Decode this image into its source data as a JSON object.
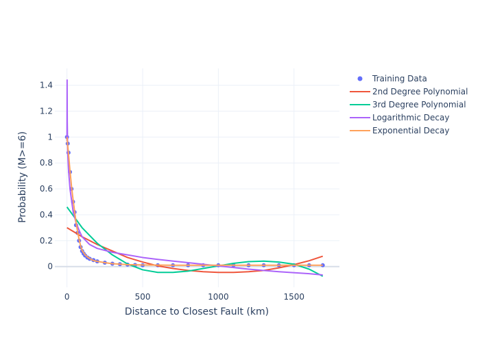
{
  "chart_data": {
    "type": "line",
    "xlabel": "Distance to Closest Fault (km)",
    "ylabel": "Probability (M>=6)",
    "xlim": [
      -80,
      1800
    ],
    "ylim": [
      -0.16,
      1.53
    ],
    "x_ticks": [
      0,
      500,
      1000,
      1500
    ],
    "y_ticks": [
      0,
      0.2,
      0.4,
      0.6,
      0.8,
      1,
      1.2,
      1.4
    ],
    "x_tick_labels": [
      "0",
      "500",
      "1000",
      "1500"
    ],
    "y_tick_labels": [
      "0",
      "0.2",
      "0.4",
      "0.6",
      "0.8",
      "1",
      "1.2",
      "1.4"
    ],
    "grid": true,
    "legend_position": "top-right",
    "series": [
      {
        "name": "Training Data",
        "mode": "markers",
        "color": "#636efa",
        "x": [
          0,
          5,
          10,
          20,
          30,
          40,
          50,
          60,
          70,
          80,
          90,
          100,
          110,
          120,
          135,
          150,
          175,
          200,
          250,
          300,
          350,
          400,
          450,
          500,
          600,
          700,
          800,
          900,
          1000,
          1100,
          1200,
          1300,
          1400,
          1500,
          1600,
          1690
        ],
        "y": [
          1.0,
          0.95,
          0.88,
          0.73,
          0.6,
          0.5,
          0.42,
          0.32,
          0.26,
          0.2,
          0.15,
          0.12,
          0.1,
          0.085,
          0.07,
          0.06,
          0.05,
          0.04,
          0.03,
          0.022,
          0.018,
          0.015,
          0.012,
          0.01,
          0.01,
          0.01,
          0.01,
          0.01,
          0.01,
          0.01,
          0.01,
          0.01,
          0.01,
          0.01,
          0.01,
          0.01
        ]
      },
      {
        "name": "2nd Degree Polynomial",
        "mode": "lines",
        "color": "#ef553b",
        "x": [
          0,
          100,
          200,
          300,
          400,
          500,
          600,
          700,
          800,
          900,
          1000,
          1100,
          1200,
          1300,
          1400,
          1500,
          1600,
          1690
        ],
        "y": [
          0.3,
          0.23,
          0.17,
          0.12,
          0.07,
          0.035,
          0.005,
          -0.015,
          -0.03,
          -0.04,
          -0.045,
          -0.045,
          -0.04,
          -0.03,
          -0.01,
          0.015,
          0.045,
          0.08
        ]
      },
      {
        "name": "3rd Degree Polynomial",
        "mode": "lines",
        "color": "#00cc96",
        "x": [
          0,
          100,
          200,
          300,
          400,
          500,
          600,
          700,
          800,
          900,
          1000,
          1100,
          1200,
          1300,
          1400,
          1500,
          1600,
          1690
        ],
        "y": [
          0.46,
          0.3,
          0.18,
          0.09,
          0.02,
          -0.025,
          -0.045,
          -0.045,
          -0.035,
          -0.015,
          0.005,
          0.025,
          0.038,
          0.042,
          0.035,
          0.018,
          -0.02,
          -0.075
        ]
      },
      {
        "name": "Logarithmic Decay",
        "mode": "lines",
        "color": "#ab63fa",
        "x": [
          0,
          1,
          2,
          5,
          10,
          20,
          40,
          60,
          80,
          100,
          150,
          200,
          300,
          400,
          500,
          600,
          800,
          1000,
          1200,
          1400,
          1600,
          1690
        ],
        "y": [
          0.97,
          1.44,
          1.12,
          0.88,
          0.75,
          0.6,
          0.43,
          0.34,
          0.28,
          0.23,
          0.17,
          0.14,
          0.11,
          0.09,
          0.07,
          0.055,
          0.03,
          0.005,
          -0.02,
          -0.04,
          -0.055,
          -0.065
        ]
      },
      {
        "name": "Exponential Decay",
        "mode": "lines",
        "color": "#ffa15a",
        "x": [
          0,
          10,
          20,
          30,
          40,
          50,
          60,
          70,
          80,
          90,
          100,
          120,
          140,
          160,
          180,
          200,
          250,
          300,
          400,
          500,
          700,
          1000,
          1300,
          1690
        ],
        "y": [
          1.0,
          0.87,
          0.74,
          0.62,
          0.52,
          0.43,
          0.34,
          0.27,
          0.21,
          0.16,
          0.125,
          0.09,
          0.07,
          0.055,
          0.045,
          0.04,
          0.03,
          0.022,
          0.015,
          0.012,
          0.01,
          0.01,
          0.01,
          0.01
        ]
      }
    ]
  }
}
